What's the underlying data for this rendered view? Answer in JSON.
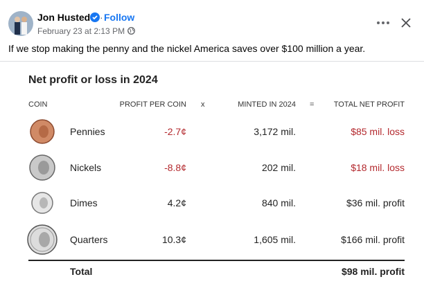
{
  "post": {
    "author": "Jon Husted",
    "follow": "Follow",
    "date": "February 23 at 2:13 PM",
    "text": "If we stop making the penny and the nickel America saves over $100 million a year."
  },
  "table": {
    "title": "Net profit or loss in 2024",
    "columns": [
      "COIN",
      "PROFIT PER COIN",
      "x",
      "MINTED IN 2024",
      "=",
      "TOTAL NET PROFIT"
    ],
    "rows": [
      [
        "Pennies",
        "-2.7¢",
        "3,172 mil.",
        "$85 mil. loss"
      ],
      [
        "Nickels",
        "-8.8¢",
        "202 mil.",
        "$18 mil. loss"
      ],
      [
        "Dimes",
        "4.2¢",
        "840 mil.",
        "$36 mil. profit"
      ],
      [
        "Quarters",
        "10.3¢",
        "1,605 mil.",
        "$166 mil. profit"
      ]
    ],
    "total": [
      "Total",
      "$98 mil. profit"
    ]
  }
}
